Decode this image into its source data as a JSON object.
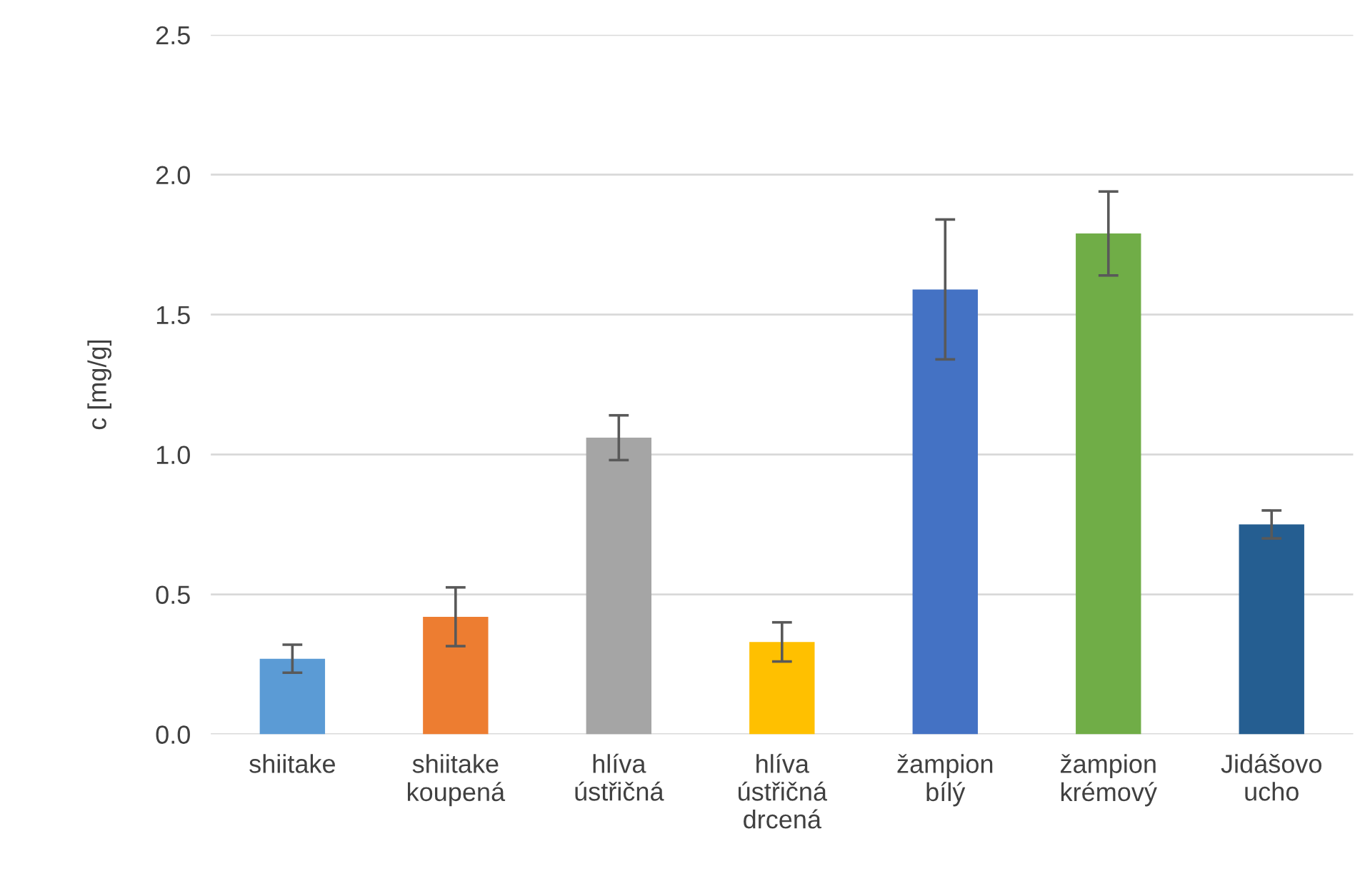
{
  "chart_data": {
    "type": "bar",
    "ylabel": "c [mg/g]",
    "categories": [
      "shiitake",
      "shiitake\nkoupená",
      "hlíva\nústřičná",
      "hlíva\nústřičná\ndrcená",
      "žampion\nbílý",
      "žampion\nkrémový",
      "Jidášovo\nucho"
    ],
    "values": [
      0.27,
      0.42,
      1.06,
      0.33,
      1.59,
      1.79,
      0.75
    ],
    "errors": [
      0.05,
      0.105,
      0.08,
      0.07,
      0.25,
      0.15,
      0.05
    ],
    "colors": [
      "#5b9bd5",
      "#ed7d31",
      "#a5a5a5",
      "#ffc000",
      "#4472c4",
      "#70ad47",
      "#255e91"
    ],
    "ylim": [
      0,
      2.5
    ],
    "yticks": [
      {
        "value": 0,
        "label": "0.0"
      },
      {
        "value": 0.5,
        "label": "0.5"
      },
      {
        "value": 1.0,
        "label": "1.0"
      },
      {
        "value": 1.5,
        "label": "1.5"
      },
      {
        "value": 2.0,
        "label": "2.0"
      },
      {
        "value": 2.5,
        "label": "2.5"
      }
    ],
    "grid": "y",
    "legend": false
  }
}
